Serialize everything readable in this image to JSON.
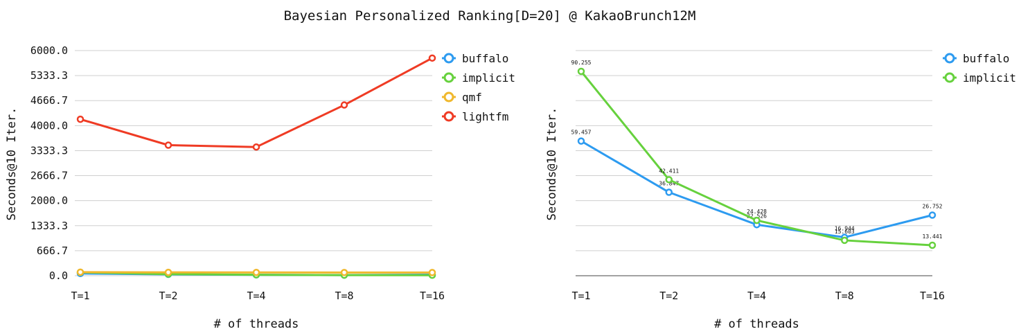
{
  "title": "Bayesian Personalized Ranking[D=20] @ KakaoBrunch12M",
  "chart_data": [
    {
      "type": "line",
      "categories": [
        "T=1",
        "T=2",
        "T=4",
        "T=8",
        "T=16"
      ],
      "xlabel": "# of threads",
      "ylabel": "Seconds@10 Iter.",
      "ylim": [
        0,
        6000
      ],
      "yticks": [
        "0.0",
        "666.7",
        "1333.3",
        "2000.0",
        "2666.7",
        "3333.3",
        "4000.0",
        "4666.7",
        "5333.3",
        "6000.0"
      ],
      "grid": true,
      "legend_position": "right",
      "series": [
        {
          "name": "buffalo",
          "color": "#2d9bf0",
          "values": [
            59.457,
            36.847,
            22.526,
            16.944,
            26.752
          ]
        },
        {
          "name": "implicit",
          "color": "#66d13d",
          "values": [
            90.255,
            42.411,
            24.428,
            15.603,
            13.441
          ]
        },
        {
          "name": "qmf",
          "color": "#f0b82d",
          "values": [
            95,
            90,
            88,
            86,
            85
          ]
        },
        {
          "name": "lightfm",
          "color": "#ef3b24",
          "values": [
            4170,
            3480,
            3430,
            4550,
            5800
          ]
        }
      ]
    },
    {
      "type": "line",
      "categories": [
        "T=1",
        "T=2",
        "T=4",
        "T=8",
        "T=16"
      ],
      "xlabel": "# of threads",
      "ylabel": "Seconds@10 Iter.",
      "ylim": [
        0,
        100
      ],
      "grid": true,
      "legend_position": "right",
      "series": [
        {
          "name": "buffalo",
          "color": "#2d9bf0",
          "values": [
            59.457,
            36.847,
            22.526,
            16.944,
            26.752
          ],
          "labels": [
            "59.457",
            "36.847",
            "22.526",
            "16.944",
            "26.752"
          ]
        },
        {
          "name": "implicit",
          "color": "#66d13d",
          "values": [
            90.255,
            42.411,
            24.428,
            15.603,
            13.441
          ],
          "labels": [
            "90.255",
            "42.411",
            "24.428",
            "15.603",
            "13.441"
          ]
        }
      ]
    }
  ]
}
